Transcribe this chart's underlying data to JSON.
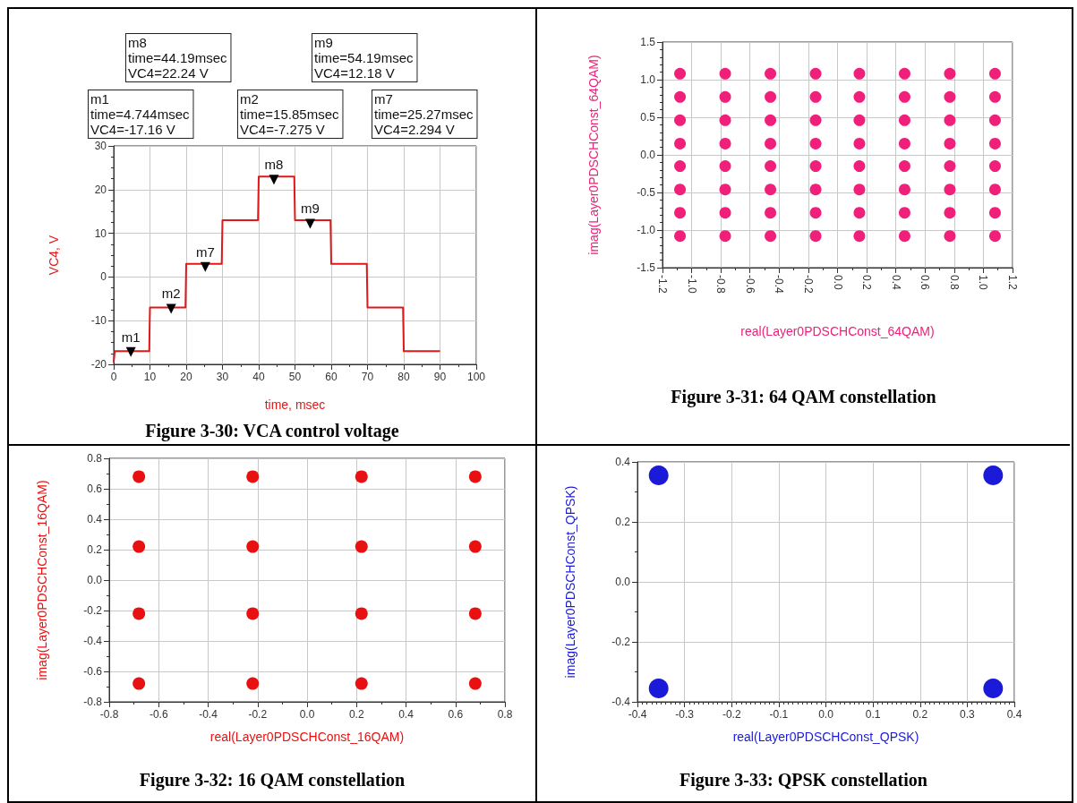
{
  "chart_data": [
    {
      "type": "line",
      "title": "Figure 3-30: VCA control voltage",
      "xlabel": "time, msec",
      "ylabel": "VC4, V",
      "grid": true,
      "series": [
        {
          "color": "#e01818",
          "marker": "none",
          "x": [
            0,
            0.3,
            9.8,
            10,
            19.8,
            20,
            29.8,
            30,
            39.8,
            40,
            49.8,
            50,
            59.8,
            60,
            69.8,
            70,
            79.8,
            80,
            90
          ],
          "values": [
            -19.5,
            -17,
            -17,
            -7,
            -7,
            3,
            3,
            13,
            13,
            23,
            23,
            13,
            13,
            3,
            3,
            -7,
            -7,
            -17,
            -17
          ]
        },
        {
          "type": "scatter",
          "color": "#000000",
          "marker": "triangle",
          "x": [
            4.744,
            15.85,
            25.27,
            44.19,
            54.19
          ],
          "values": [
            -17.16,
            -7.275,
            2.294,
            22.24,
            12.18
          ],
          "value_labels": [
            "m1",
            "m2",
            "m7",
            "m8",
            "m9"
          ]
        }
      ],
      "xlim": [
        0,
        100
      ],
      "xticks": [
        0,
        10,
        20,
        30,
        40,
        50,
        60,
        70,
        80,
        90,
        100
      ],
      "ylim": [
        -20,
        30
      ],
      "yticks": [
        -20,
        -10,
        0,
        10,
        20,
        30
      ],
      "annotations": [
        "m8\ntime=44.19msec\nVC4=22.24 V",
        "m9\ntime=54.19msec\nVC4=12.18 V",
        "m1\ntime=4.744msec\nVC4=-17.16 V",
        "m2\ntime=15.85msec\nVC4=-7.275 V",
        "m7\ntime=25.27msec\nVC4=2.294 V"
      ]
    },
    {
      "type": "scatter",
      "title": "Figure 3-31: 64 QAM constellation",
      "xlabel": "real(Layer0PDSCHConst_64QAM)",
      "ylabel": "imag(Layer0PDSCHConst_64QAM)",
      "color": "#f0207a",
      "grid": true,
      "marker": "circle",
      "x": [
        -1.08,
        -0.77,
        -0.46,
        -0.15,
        0.15,
        0.46,
        0.77,
        1.08,
        -1.08,
        -0.77,
        -0.46,
        -0.15,
        0.15,
        0.46,
        0.77,
        1.08,
        -1.08,
        -0.77,
        -0.46,
        -0.15,
        0.15,
        0.46,
        0.77,
        1.08,
        -1.08,
        -0.77,
        -0.46,
        -0.15,
        0.15,
        0.46,
        0.77,
        1.08,
        -1.08,
        -0.77,
        -0.46,
        -0.15,
        0.15,
        0.46,
        0.77,
        1.08,
        -1.08,
        -0.77,
        -0.46,
        -0.15,
        0.15,
        0.46,
        0.77,
        1.08,
        -1.08,
        -0.77,
        -0.46,
        -0.15,
        0.15,
        0.46,
        0.77,
        1.08,
        -1.08,
        -0.77,
        -0.46,
        -0.15,
        0.15,
        0.46,
        0.77,
        1.08
      ],
      "values": [
        1.08,
        1.08,
        1.08,
        1.08,
        1.08,
        1.08,
        1.08,
        1.08,
        0.77,
        0.77,
        0.77,
        0.77,
        0.77,
        0.77,
        0.77,
        0.77,
        0.46,
        0.46,
        0.46,
        0.46,
        0.46,
        0.46,
        0.46,
        0.46,
        0.15,
        0.15,
        0.15,
        0.15,
        0.15,
        0.15,
        0.15,
        0.15,
        -0.15,
        -0.15,
        -0.15,
        -0.15,
        -0.15,
        -0.15,
        -0.15,
        -0.15,
        -0.46,
        -0.46,
        -0.46,
        -0.46,
        -0.46,
        -0.46,
        -0.46,
        -0.46,
        -0.77,
        -0.77,
        -0.77,
        -0.77,
        -0.77,
        -0.77,
        -0.77,
        -0.77,
        -1.08,
        -1.08,
        -1.08,
        -1.08,
        -1.08,
        -1.08,
        -1.08,
        -1.08
      ],
      "xlim": [
        -1.2,
        1.2
      ],
      "xticks": [
        -1.2,
        {
          "value": -1,
          "label": "-1.0"
        },
        -0.8,
        -0.6,
        -0.4,
        -0.2,
        {
          "value": 0,
          "label": "0.0"
        },
        0.2,
        0.4,
        0.6,
        0.8,
        {
          "value": 1,
          "label": "1.0"
        },
        1.2
      ],
      "ylim": [
        -1.5,
        1.5
      ],
      "yticks": [
        -1.5,
        {
          "value": -1,
          "label": "-1.0"
        },
        -0.5,
        {
          "value": 0,
          "label": "0.0"
        },
        0.5,
        {
          "value": 1,
          "label": "1.0"
        },
        1.5
      ]
    },
    {
      "type": "scatter",
      "title": "Figure 3-32: 16 QAM constellation",
      "xlabel": "real(Layer0PDSCHConst_16QAM)",
      "ylabel": "imag(Layer0PDSCHConst_16QAM)",
      "color": "#e81010",
      "grid": true,
      "marker": "circle",
      "x": [
        -0.68,
        -0.22,
        0.22,
        0.68,
        -0.68,
        -0.22,
        0.22,
        0.68,
        -0.68,
        -0.22,
        0.22,
        0.68,
        -0.68,
        -0.22,
        0.22,
        0.68
      ],
      "values": [
        0.68,
        0.68,
        0.68,
        0.68,
        0.22,
        0.22,
        0.22,
        0.22,
        -0.22,
        -0.22,
        -0.22,
        -0.22,
        -0.68,
        -0.68,
        -0.68,
        -0.68
      ],
      "xlim": [
        -0.8,
        0.8
      ],
      "xticks": [
        -0.8,
        -0.6,
        -0.4,
        -0.2,
        {
          "value": 0,
          "label": "0.0"
        },
        0.2,
        0.4,
        0.6,
        0.8
      ],
      "ylim": [
        -0.8,
        0.8
      ],
      "yticks": [
        -0.8,
        -0.6,
        -0.4,
        -0.2,
        {
          "value": 0,
          "label": "0.0"
        },
        0.2,
        0.4,
        0.6,
        0.8
      ]
    },
    {
      "type": "scatter",
      "title": "Figure 3-33: QPSK constellation",
      "xlabel": "real(Layer0PDSCHConst_QPSK)",
      "ylabel": "imag(Layer0PDSCHConst_QPSK)",
      "color": "#1a1ad8",
      "grid": true,
      "marker": "circle",
      "x": [
        -0.355,
        0.355,
        -0.355,
        0.355
      ],
      "values": [
        0.355,
        0.355,
        -0.355,
        -0.355
      ],
      "xlim": [
        -0.4,
        0.4
      ],
      "xticks": [
        -0.4,
        -0.3,
        -0.2,
        -0.1,
        {
          "value": 0,
          "label": "0.0"
        },
        0.1,
        0.2,
        0.3,
        0.4
      ],
      "ylim": [
        -0.4,
        0.4
      ],
      "yticks": [
        -0.4,
        -0.2,
        {
          "value": 0,
          "label": "0.0"
        },
        0.2,
        0.4
      ]
    }
  ]
}
